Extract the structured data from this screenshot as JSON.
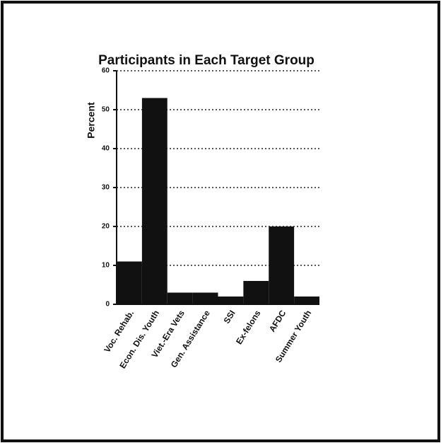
{
  "chart_data": {
    "type": "bar",
    "title": "Participants in Each Target Group",
    "ylabel": "Percent",
    "categories": [
      "Voc. Rehab.",
      "Econ. Dis. Youth",
      "Viet.-Era Vets",
      "Gen. Assistance",
      "SSI",
      "Ex-felons",
      "AFDC",
      "Summer Youth"
    ],
    "values": [
      11,
      53,
      3,
      3,
      2,
      6,
      20,
      2
    ],
    "color": "#111111",
    "ylim": [
      0,
      60
    ],
    "yticks": [
      0,
      10,
      20,
      30,
      40,
      50,
      60
    ],
    "grid": true
  }
}
